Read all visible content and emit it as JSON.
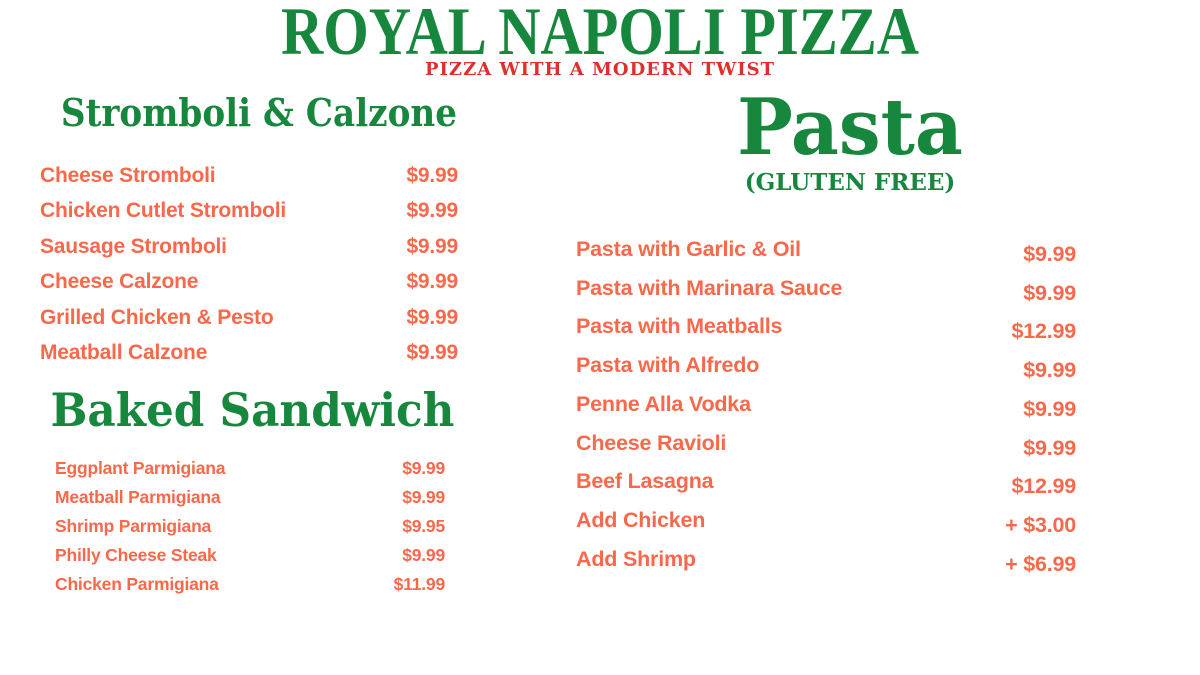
{
  "brand": {
    "title": "ROYAL NAPOLI PIZZA",
    "tagline": "PIZZA WITH A MODERN TWIST"
  },
  "colors": {
    "heading_green": "#17873D",
    "tagline_red": "#E12E2D",
    "item_coral": "#F8684B",
    "background": "#FFFFFF"
  },
  "sections": [
    {
      "title": "Stromboli & Calzone",
      "items": [
        {
          "name": "Cheese Stromboli",
          "price": "$9.99"
        },
        {
          "name": "Chicken Cutlet Stromboli",
          "price": "$9.99"
        },
        {
          "name": "Sausage Stromboli",
          "price": "$9.99"
        },
        {
          "name": "Cheese Calzone",
          "price": "$9.99"
        },
        {
          "name": "Grilled Chicken & Pesto",
          "price": "$9.99"
        },
        {
          "name": "Meatball Calzone",
          "price": "$9.99"
        }
      ]
    },
    {
      "title": "Baked Sandwich",
      "items": [
        {
          "name": "Eggplant Parmigiana",
          "price": "$9.99"
        },
        {
          "name": "Meatball Parmigiana",
          "price": "$9.99"
        },
        {
          "name": "Shrimp Parmigiana",
          "price": "$9.95"
        },
        {
          "name": "Philly Cheese Steak",
          "price": "$9.99"
        },
        {
          "name": "Chicken Parmigiana",
          "price": "$11.99"
        }
      ]
    },
    {
      "title": "Pasta",
      "subtitle": "(GLUTEN FREE)",
      "items": [
        {
          "name": "Pasta with Garlic & Oil",
          "price": "$9.99"
        },
        {
          "name": "Pasta with Marinara Sauce",
          "price": "$9.99"
        },
        {
          "name": "Pasta with Meatballs",
          "price": "$12.99"
        },
        {
          "name": "Pasta with Alfredo",
          "price": "$9.99"
        },
        {
          "name": "Penne Alla Vodka",
          "price": "$9.99"
        },
        {
          "name": "Cheese Ravioli",
          "price": "$9.99"
        },
        {
          "name": "Beef Lasagna",
          "price": "$12.99"
        },
        {
          "name": "Add Chicken",
          "price": "+ $3.00"
        },
        {
          "name": "Add Shrimp",
          "price": "+ $6.99"
        }
      ]
    }
  ]
}
